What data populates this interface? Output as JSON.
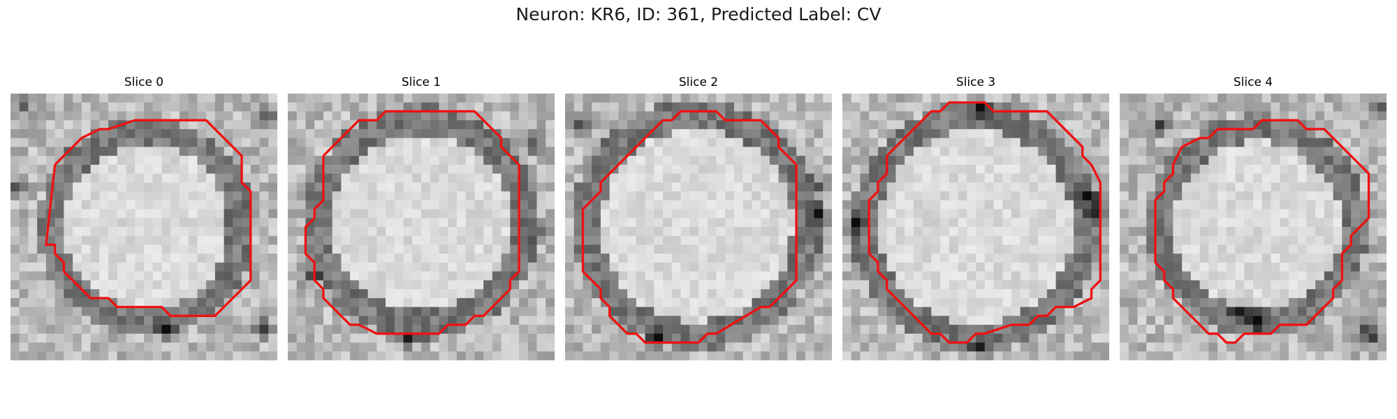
{
  "figure": {
    "title": "Neuron: KR6, ID: 361, Predicted Label: CV",
    "contour_color": "#ee1111"
  },
  "panels": [
    {
      "label": "Slice 0"
    },
    {
      "label": "Slice 1"
    },
    {
      "label": "Slice 2"
    },
    {
      "label": "Slice 3"
    },
    {
      "label": "Slice 4"
    }
  ]
}
